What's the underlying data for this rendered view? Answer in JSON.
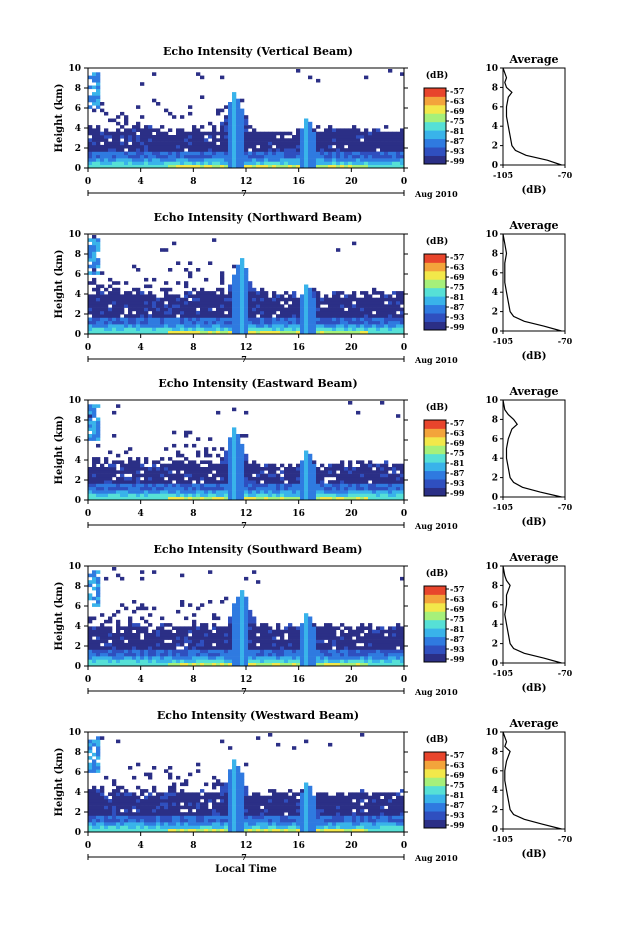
{
  "colors": {
    "scale": [
      "#2b2f86",
      "#2f4fbf",
      "#2f7ae0",
      "#39b3ea",
      "#56e0d6",
      "#a6f07a",
      "#f2e84a",
      "#f3a43b",
      "#e8452c"
    ],
    "axis": "#000000"
  },
  "common": {
    "month_label": "Aug 2010",
    "day_label": "7",
    "xlabel": "Local Time",
    "ylabel": "Height (km)",
    "cbar_label": "(dB)",
    "cbar_ticks": [
      "-57",
      "-63",
      "-69",
      "-75",
      "-81",
      "-87",
      "-93",
      "-99"
    ],
    "avg_title": "Average",
    "avg_xlabel": "(dB)",
    "avg_xticks": [
      "-105",
      "-70"
    ]
  },
  "chart_data": [
    {
      "type": "heatmap",
      "title": "Echo Intensity (Vertical Beam)",
      "xlabel": "",
      "ylabel": "Height (km)",
      "x_ticks": [
        "0",
        "4",
        "8",
        "12",
        "16",
        "20",
        "0"
      ],
      "xlim": [
        0,
        24
      ],
      "y_ticks": [
        "0",
        "2",
        "4",
        "6",
        "8",
        "10"
      ],
      "ylim": [
        0,
        10
      ],
      "colorbar": {
        "label": "(dB)",
        "ticks": [
          -57,
          -63,
          -69,
          -75,
          -81,
          -87,
          -93,
          -99
        ]
      },
      "features": {
        "base_top_km": 4.0,
        "spikes_hour": [
          11.0,
          16.5
        ],
        "spike_top_km": 7.8
      },
      "average_profile": {
        "title": "Average",
        "xlabel": "(dB)",
        "xlim": [
          -105,
          -70
        ],
        "x_ticks": [
          -105,
          -70
        ],
        "height_km": [
          0,
          0.5,
          1.0,
          1.5,
          2.0,
          3.0,
          4.0,
          5.0,
          6.0,
          7.0,
          7.5,
          8.0,
          8.5,
          9.0,
          9.5,
          10.0
        ],
        "db": [
          -72,
          -80,
          -92,
          -98,
          -100,
          -101,
          -102,
          -103,
          -103,
          -102,
          -100,
          -103,
          -104,
          -103,
          -104,
          -105
        ]
      }
    },
    {
      "type": "heatmap",
      "title": "Echo Intensity (Northward Beam)",
      "xlabel": "",
      "ylabel": "Height (km)",
      "x_ticks": [
        "0",
        "4",
        "8",
        "12",
        "16",
        "20",
        "0"
      ],
      "xlim": [
        0,
        24
      ],
      "y_ticks": [
        "0",
        "2",
        "4",
        "6",
        "8",
        "10"
      ],
      "ylim": [
        0,
        10
      ],
      "colorbar": {
        "label": "(dB)",
        "ticks": [
          -57,
          -63,
          -69,
          -75,
          -81,
          -87,
          -93,
          -99
        ]
      },
      "features": {
        "base_top_km": 4.3,
        "spikes_hour": [
          11.5,
          16.5
        ],
        "spike_top_km": 7.8
      },
      "average_profile": {
        "title": "Average",
        "xlabel": "(dB)",
        "xlim": [
          -105,
          -70
        ],
        "x_ticks": [
          -105,
          -70
        ],
        "height_km": [
          0,
          0.5,
          1.0,
          1.5,
          2.0,
          3.0,
          4.0,
          5.0,
          6.0,
          7.0,
          8.0,
          9.0,
          10.0
        ],
        "db": [
          -72,
          -82,
          -93,
          -99,
          -101,
          -102,
          -103,
          -104,
          -104,
          -104,
          -103,
          -104,
          -105
        ]
      }
    },
    {
      "type": "heatmap",
      "title": "Echo Intensity (Eastward Beam)",
      "xlabel": "",
      "ylabel": "Height (km)",
      "x_ticks": [
        "0",
        "4",
        "8",
        "12",
        "16",
        "20",
        "0"
      ],
      "xlim": [
        0,
        24
      ],
      "y_ticks": [
        "0",
        "2",
        "4",
        "6",
        "8",
        "10"
      ],
      "ylim": [
        0,
        10
      ],
      "colorbar": {
        "label": "(dB)",
        "ticks": [
          -57,
          -63,
          -69,
          -75,
          -81,
          -87,
          -93,
          -99
        ]
      },
      "features": {
        "base_top_km": 3.8,
        "spikes_hour": [
          11.0,
          16.5
        ],
        "spike_top_km": 7.5
      },
      "average_profile": {
        "title": "Average",
        "xlabel": "(dB)",
        "xlim": [
          -105,
          -70
        ],
        "x_ticks": [
          -105,
          -70
        ],
        "height_km": [
          0,
          0.5,
          1.0,
          1.5,
          2.0,
          3.0,
          4.0,
          5.0,
          6.0,
          7.0,
          7.5,
          8.0,
          8.5,
          9.0,
          10.0
        ],
        "db": [
          -72,
          -84,
          -94,
          -99,
          -101,
          -102,
          -103,
          -103,
          -102,
          -100,
          -97,
          -99,
          -102,
          -104,
          -105
        ]
      }
    },
    {
      "type": "heatmap",
      "title": "Echo Intensity (Southward Beam)",
      "xlabel": "",
      "ylabel": "Height (km)",
      "x_ticks": [
        "0",
        "4",
        "8",
        "12",
        "16",
        "20",
        "0"
      ],
      "xlim": [
        0,
        24
      ],
      "y_ticks": [
        "0",
        "2",
        "4",
        "6",
        "8",
        "10"
      ],
      "ylim": [
        0,
        10
      ],
      "colorbar": {
        "label": "(dB)",
        "ticks": [
          -57,
          -63,
          -69,
          -75,
          -81,
          -87,
          -93,
          -99
        ]
      },
      "features": {
        "base_top_km": 4.2,
        "spikes_hour": [
          11.5,
          16.5
        ],
        "spike_top_km": 8.0
      },
      "average_profile": {
        "title": "Average",
        "xlabel": "(dB)",
        "xlim": [
          -105,
          -70
        ],
        "x_ticks": [
          -105,
          -70
        ],
        "height_km": [
          0,
          0.5,
          1.0,
          1.5,
          2.0,
          3.0,
          4.0,
          5.0,
          6.0,
          7.0,
          8.0,
          8.5,
          9.0,
          10.0
        ],
        "db": [
          -72,
          -82,
          -93,
          -99,
          -101,
          -102,
          -103,
          -104,
          -103,
          -103,
          -101,
          -103,
          -104,
          -105
        ]
      }
    },
    {
      "type": "heatmap",
      "title": "Echo Intensity (Westward Beam)",
      "xlabel": "Local Time",
      "ylabel": "Height (km)",
      "x_ticks": [
        "0",
        "4",
        "8",
        "12",
        "16",
        "20",
        "0"
      ],
      "xlim": [
        0,
        24
      ],
      "y_ticks": [
        "0",
        "2",
        "4",
        "6",
        "8",
        "10"
      ],
      "ylim": [
        0,
        10
      ],
      "colorbar": {
        "label": "(dB)",
        "ticks": [
          -57,
          -63,
          -69,
          -75,
          -81,
          -87,
          -93,
          -99
        ]
      },
      "features": {
        "base_top_km": 4.2,
        "spikes_hour": [
          11.0,
          16.5
        ],
        "spike_top_km": 7.6
      },
      "average_profile": {
        "title": "Average",
        "xlabel": "(dB)",
        "xlim": [
          -105,
          -70
        ],
        "x_ticks": [
          -105,
          -70
        ],
        "height_km": [
          0,
          0.5,
          1.0,
          1.5,
          2.0,
          3.0,
          4.0,
          5.0,
          6.0,
          7.0,
          8.0,
          8.5,
          9.0,
          10.0
        ],
        "db": [
          -72,
          -83,
          -93,
          -99,
          -101,
          -102,
          -103,
          -104,
          -104,
          -103,
          -101,
          -104,
          -103,
          -105
        ]
      }
    }
  ]
}
